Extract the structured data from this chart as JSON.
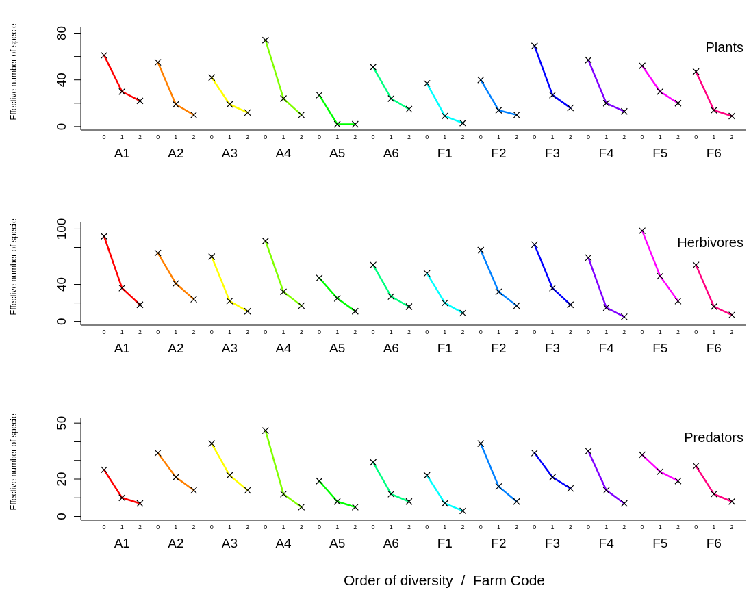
{
  "chart_data": [
    {
      "type": "line",
      "title": "Plants",
      "annotations": [
        "A1",
        "A2",
        "A3",
        "A4",
        "A5",
        "A6",
        "F1",
        "F2",
        "F3",
        "F4",
        "F5",
        "F6"
      ],
      "ylabel": "Effective number of specie",
      "categories": [
        "0",
        "1",
        "2",
        "0",
        "1",
        "2",
        "0",
        "1",
        "2",
        "0",
        "1",
        "2",
        "0",
        "1",
        "2",
        "0",
        "1",
        "2",
        "0",
        "1",
        "2",
        "0",
        "1",
        "2",
        "0",
        "1",
        "2",
        "0",
        "1",
        "2",
        "0",
        "1",
        "2",
        "0",
        "1",
        "2"
      ],
      "ylim": [
        -3,
        85
      ],
      "yticks": [
        0,
        {
          "value": 20,
          "label": null
        },
        40,
        {
          "value": 60,
          "label": null
        },
        80
      ],
      "grid": false,
      "legend": false,
      "marker": "cross",
      "line_style": "solid",
      "series": [
        {
          "color": "#ff0000",
          "values": [
            61,
            30,
            22,
            null,
            null,
            null,
            null,
            null,
            null,
            null,
            null,
            null,
            null,
            null,
            null,
            null,
            null,
            null,
            null,
            null,
            null,
            null,
            null,
            null,
            null,
            null,
            null,
            null,
            null,
            null,
            null,
            null,
            null,
            null,
            null,
            null
          ]
        },
        {
          "color": "#ff8000",
          "values": [
            null,
            null,
            null,
            55,
            19,
            10,
            null,
            null,
            null,
            null,
            null,
            null,
            null,
            null,
            null,
            null,
            null,
            null,
            null,
            null,
            null,
            null,
            null,
            null,
            null,
            null,
            null,
            null,
            null,
            null,
            null,
            null,
            null,
            null,
            null,
            null
          ]
        },
        {
          "color": "#ffff00",
          "values": [
            null,
            null,
            null,
            null,
            null,
            null,
            42,
            19,
            12,
            null,
            null,
            null,
            null,
            null,
            null,
            null,
            null,
            null,
            null,
            null,
            null,
            null,
            null,
            null,
            null,
            null,
            null,
            null,
            null,
            null,
            null,
            null,
            null,
            null,
            null,
            null
          ]
        },
        {
          "color": "#80ff00",
          "values": [
            null,
            null,
            null,
            null,
            null,
            null,
            null,
            null,
            null,
            74,
            24,
            10,
            null,
            null,
            null,
            null,
            null,
            null,
            null,
            null,
            null,
            null,
            null,
            null,
            null,
            null,
            null,
            null,
            null,
            null,
            null,
            null,
            null,
            null,
            null,
            null
          ]
        },
        {
          "color": "#00ff00",
          "values": [
            null,
            null,
            null,
            null,
            null,
            null,
            null,
            null,
            null,
            null,
            null,
            null,
            27,
            2,
            2,
            null,
            null,
            null,
            null,
            null,
            null,
            null,
            null,
            null,
            null,
            null,
            null,
            null,
            null,
            null,
            null,
            null,
            null,
            null,
            null,
            null
          ]
        },
        {
          "color": "#00ff80",
          "values": [
            null,
            null,
            null,
            null,
            null,
            null,
            null,
            null,
            null,
            null,
            null,
            null,
            null,
            null,
            null,
            51,
            24,
            15,
            null,
            null,
            null,
            null,
            null,
            null,
            null,
            null,
            null,
            null,
            null,
            null,
            null,
            null,
            null,
            null,
            null,
            null
          ]
        },
        {
          "color": "#00ffff",
          "values": [
            null,
            null,
            null,
            null,
            null,
            null,
            null,
            null,
            null,
            null,
            null,
            null,
            null,
            null,
            null,
            null,
            null,
            null,
            37,
            9,
            3,
            null,
            null,
            null,
            null,
            null,
            null,
            null,
            null,
            null,
            null,
            null,
            null,
            null,
            null,
            null
          ]
        },
        {
          "color": "#0080ff",
          "values": [
            null,
            null,
            null,
            null,
            null,
            null,
            null,
            null,
            null,
            null,
            null,
            null,
            null,
            null,
            null,
            null,
            null,
            null,
            null,
            null,
            null,
            40,
            14,
            10,
            null,
            null,
            null,
            null,
            null,
            null,
            null,
            null,
            null,
            null,
            null,
            null
          ]
        },
        {
          "color": "#0000ff",
          "values": [
            null,
            null,
            null,
            null,
            null,
            null,
            null,
            null,
            null,
            null,
            null,
            null,
            null,
            null,
            null,
            null,
            null,
            null,
            null,
            null,
            null,
            null,
            null,
            null,
            69,
            27,
            16,
            null,
            null,
            null,
            null,
            null,
            null,
            null,
            null,
            null
          ]
        },
        {
          "color": "#8000ff",
          "values": [
            null,
            null,
            null,
            null,
            null,
            null,
            null,
            null,
            null,
            null,
            null,
            null,
            null,
            null,
            null,
            null,
            null,
            null,
            null,
            null,
            null,
            null,
            null,
            null,
            null,
            null,
            null,
            57,
            20,
            13,
            null,
            null,
            null,
            null,
            null,
            null
          ]
        },
        {
          "color": "#ff00ff",
          "values": [
            null,
            null,
            null,
            null,
            null,
            null,
            null,
            null,
            null,
            null,
            null,
            null,
            null,
            null,
            null,
            null,
            null,
            null,
            null,
            null,
            null,
            null,
            null,
            null,
            null,
            null,
            null,
            null,
            null,
            null,
            52,
            30,
            20,
            null,
            null,
            null
          ]
        },
        {
          "color": "#ff0080",
          "values": [
            null,
            null,
            null,
            null,
            null,
            null,
            null,
            null,
            null,
            null,
            null,
            null,
            null,
            null,
            null,
            null,
            null,
            null,
            null,
            null,
            null,
            null,
            null,
            null,
            null,
            null,
            null,
            null,
            null,
            null,
            null,
            null,
            null,
            47,
            14,
            9
          ]
        }
      ]
    },
    {
      "type": "line",
      "title": "Herbivores",
      "annotations": [
        "A1",
        "A2",
        "A3",
        "A4",
        "A5",
        "A6",
        "F1",
        "F2",
        "F3",
        "F4",
        "F5",
        "F6"
      ],
      "ylabel": "Effective number of specie",
      "categories": [
        "0",
        "1",
        "2",
        "0",
        "1",
        "2",
        "0",
        "1",
        "2",
        "0",
        "1",
        "2",
        "0",
        "1",
        "2",
        "0",
        "1",
        "2",
        "0",
        "1",
        "2",
        "0",
        "1",
        "2",
        "0",
        "1",
        "2",
        "0",
        "1",
        "2",
        "0",
        "1",
        "2",
        "0",
        "1",
        "2"
      ],
      "ylim": [
        -4,
        107
      ],
      "yticks": [
        0,
        {
          "value": 20,
          "label": null
        },
        40,
        {
          "value": 60,
          "label": null
        },
        {
          "value": 80,
          "label": null
        },
        100
      ],
      "grid": false,
      "legend": false,
      "marker": "cross",
      "line_style": "solid",
      "series": [
        {
          "color": "#ff0000",
          "values": [
            92,
            36,
            18,
            null,
            null,
            null,
            null,
            null,
            null,
            null,
            null,
            null,
            null,
            null,
            null,
            null,
            null,
            null,
            null,
            null,
            null,
            null,
            null,
            null,
            null,
            null,
            null,
            null,
            null,
            null,
            null,
            null,
            null,
            null,
            null,
            null
          ]
        },
        {
          "color": "#ff8000",
          "values": [
            null,
            null,
            null,
            74,
            41,
            24,
            null,
            null,
            null,
            null,
            null,
            null,
            null,
            null,
            null,
            null,
            null,
            null,
            null,
            null,
            null,
            null,
            null,
            null,
            null,
            null,
            null,
            null,
            null,
            null,
            null,
            null,
            null,
            null,
            null,
            null
          ]
        },
        {
          "color": "#ffff00",
          "values": [
            null,
            null,
            null,
            null,
            null,
            null,
            70,
            22,
            11,
            null,
            null,
            null,
            null,
            null,
            null,
            null,
            null,
            null,
            null,
            null,
            null,
            null,
            null,
            null,
            null,
            null,
            null,
            null,
            null,
            null,
            null,
            null,
            null,
            null,
            null,
            null
          ]
        },
        {
          "color": "#80ff00",
          "values": [
            null,
            null,
            null,
            null,
            null,
            null,
            null,
            null,
            null,
            87,
            32,
            17,
            null,
            null,
            null,
            null,
            null,
            null,
            null,
            null,
            null,
            null,
            null,
            null,
            null,
            null,
            null,
            null,
            null,
            null,
            null,
            null,
            null,
            null,
            null,
            null
          ]
        },
        {
          "color": "#00ff00",
          "values": [
            null,
            null,
            null,
            null,
            null,
            null,
            null,
            null,
            null,
            null,
            null,
            null,
            47,
            25,
            11,
            null,
            null,
            null,
            null,
            null,
            null,
            null,
            null,
            null,
            null,
            null,
            null,
            null,
            null,
            null,
            null,
            null,
            null,
            null,
            null,
            null
          ]
        },
        {
          "color": "#00ff80",
          "values": [
            null,
            null,
            null,
            null,
            null,
            null,
            null,
            null,
            null,
            null,
            null,
            null,
            null,
            null,
            null,
            61,
            27,
            16,
            null,
            null,
            null,
            null,
            null,
            null,
            null,
            null,
            null,
            null,
            null,
            null,
            null,
            null,
            null,
            null,
            null,
            null
          ]
        },
        {
          "color": "#00ffff",
          "values": [
            null,
            null,
            null,
            null,
            null,
            null,
            null,
            null,
            null,
            null,
            null,
            null,
            null,
            null,
            null,
            null,
            null,
            null,
            52,
            20,
            9,
            null,
            null,
            null,
            null,
            null,
            null,
            null,
            null,
            null,
            null,
            null,
            null,
            null,
            null,
            null
          ]
        },
        {
          "color": "#0080ff",
          "values": [
            null,
            null,
            null,
            null,
            null,
            null,
            null,
            null,
            null,
            null,
            null,
            null,
            null,
            null,
            null,
            null,
            null,
            null,
            null,
            null,
            null,
            77,
            32,
            17,
            null,
            null,
            null,
            null,
            null,
            null,
            null,
            null,
            null,
            null,
            null,
            null
          ]
        },
        {
          "color": "#0000ff",
          "values": [
            null,
            null,
            null,
            null,
            null,
            null,
            null,
            null,
            null,
            null,
            null,
            null,
            null,
            null,
            null,
            null,
            null,
            null,
            null,
            null,
            null,
            null,
            null,
            null,
            83,
            36,
            18,
            null,
            null,
            null,
            null,
            null,
            null,
            null,
            null,
            null
          ]
        },
        {
          "color": "#8000ff",
          "values": [
            null,
            null,
            null,
            null,
            null,
            null,
            null,
            null,
            null,
            null,
            null,
            null,
            null,
            null,
            null,
            null,
            null,
            null,
            null,
            null,
            null,
            null,
            null,
            null,
            null,
            null,
            null,
            69,
            15,
            5,
            null,
            null,
            null,
            null,
            null,
            null
          ]
        },
        {
          "color": "#ff00ff",
          "values": [
            null,
            null,
            null,
            null,
            null,
            null,
            null,
            null,
            null,
            null,
            null,
            null,
            null,
            null,
            null,
            null,
            null,
            null,
            null,
            null,
            null,
            null,
            null,
            null,
            null,
            null,
            null,
            null,
            null,
            null,
            98,
            49,
            22,
            null,
            null,
            null
          ]
        },
        {
          "color": "#ff0080",
          "values": [
            null,
            null,
            null,
            null,
            null,
            null,
            null,
            null,
            null,
            null,
            null,
            null,
            null,
            null,
            null,
            null,
            null,
            null,
            null,
            null,
            null,
            null,
            null,
            null,
            null,
            null,
            null,
            null,
            null,
            null,
            null,
            null,
            null,
            61,
            16,
            7
          ]
        }
      ]
    },
    {
      "type": "line",
      "title": "Predators",
      "annotations": [
        "A1",
        "A2",
        "A3",
        "A4",
        "A5",
        "A6",
        "F1",
        "F2",
        "F3",
        "F4",
        "F5",
        "F6"
      ],
      "ylabel": "Effective number of specie",
      "xlabel": "Order of diversity  /  Farm Code",
      "categories": [
        "0",
        "1",
        "2",
        "0",
        "1",
        "2",
        "0",
        "1",
        "2",
        "0",
        "1",
        "2",
        "0",
        "1",
        "2",
        "0",
        "1",
        "2",
        "0",
        "1",
        "2",
        "0",
        "1",
        "2",
        "0",
        "1",
        "2",
        "0",
        "1",
        "2",
        "0",
        "1",
        "2",
        "0",
        "1",
        "2"
      ],
      "ylim": [
        -2,
        53
      ],
      "yticks": [
        0,
        {
          "value": 10,
          "label": null
        },
        20,
        {
          "value": 30,
          "label": null
        },
        {
          "value": 40,
          "label": null
        },
        50
      ],
      "grid": false,
      "legend": false,
      "marker": "cross",
      "line_style": "solid",
      "series": [
        {
          "color": "#ff0000",
          "values": [
            25,
            10,
            7,
            null,
            null,
            null,
            null,
            null,
            null,
            null,
            null,
            null,
            null,
            null,
            null,
            null,
            null,
            null,
            null,
            null,
            null,
            null,
            null,
            null,
            null,
            null,
            null,
            null,
            null,
            null,
            null,
            null,
            null,
            null,
            null,
            null
          ]
        },
        {
          "color": "#ff8000",
          "values": [
            null,
            null,
            null,
            34,
            21,
            14,
            null,
            null,
            null,
            null,
            null,
            null,
            null,
            null,
            null,
            null,
            null,
            null,
            null,
            null,
            null,
            null,
            null,
            null,
            null,
            null,
            null,
            null,
            null,
            null,
            null,
            null,
            null,
            null,
            null,
            null
          ]
        },
        {
          "color": "#ffff00",
          "values": [
            null,
            null,
            null,
            null,
            null,
            null,
            39,
            22,
            14,
            null,
            null,
            null,
            null,
            null,
            null,
            null,
            null,
            null,
            null,
            null,
            null,
            null,
            null,
            null,
            null,
            null,
            null,
            null,
            null,
            null,
            null,
            null,
            null,
            null,
            null,
            null
          ]
        },
        {
          "color": "#80ff00",
          "values": [
            null,
            null,
            null,
            null,
            null,
            null,
            null,
            null,
            null,
            46,
            12,
            5,
            null,
            null,
            null,
            null,
            null,
            null,
            null,
            null,
            null,
            null,
            null,
            null,
            null,
            null,
            null,
            null,
            null,
            null,
            null,
            null,
            null,
            null,
            null,
            null
          ]
        },
        {
          "color": "#00ff00",
          "values": [
            null,
            null,
            null,
            null,
            null,
            null,
            null,
            null,
            null,
            null,
            null,
            null,
            19,
            8,
            5,
            null,
            null,
            null,
            null,
            null,
            null,
            null,
            null,
            null,
            null,
            null,
            null,
            null,
            null,
            null,
            null,
            null,
            null,
            null,
            null,
            null
          ]
        },
        {
          "color": "#00ff80",
          "values": [
            null,
            null,
            null,
            null,
            null,
            null,
            null,
            null,
            null,
            null,
            null,
            null,
            null,
            null,
            null,
            29,
            12,
            8,
            null,
            null,
            null,
            null,
            null,
            null,
            null,
            null,
            null,
            null,
            null,
            null,
            null,
            null,
            null,
            null,
            null,
            null
          ]
        },
        {
          "color": "#00ffff",
          "values": [
            null,
            null,
            null,
            null,
            null,
            null,
            null,
            null,
            null,
            null,
            null,
            null,
            null,
            null,
            null,
            null,
            null,
            null,
            22,
            7,
            3,
            null,
            null,
            null,
            null,
            null,
            null,
            null,
            null,
            null,
            null,
            null,
            null,
            null,
            null,
            null
          ]
        },
        {
          "color": "#0080ff",
          "values": [
            null,
            null,
            null,
            null,
            null,
            null,
            null,
            null,
            null,
            null,
            null,
            null,
            null,
            null,
            null,
            null,
            null,
            null,
            null,
            null,
            null,
            39,
            16,
            8,
            null,
            null,
            null,
            null,
            null,
            null,
            null,
            null,
            null,
            null,
            null,
            null
          ]
        },
        {
          "color": "#0000ff",
          "values": [
            null,
            null,
            null,
            null,
            null,
            null,
            null,
            null,
            null,
            null,
            null,
            null,
            null,
            null,
            null,
            null,
            null,
            null,
            null,
            null,
            null,
            null,
            null,
            null,
            34,
            21,
            15,
            null,
            null,
            null,
            null,
            null,
            null,
            null,
            null,
            null
          ]
        },
        {
          "color": "#8000ff",
          "values": [
            null,
            null,
            null,
            null,
            null,
            null,
            null,
            null,
            null,
            null,
            null,
            null,
            null,
            null,
            null,
            null,
            null,
            null,
            null,
            null,
            null,
            null,
            null,
            null,
            null,
            null,
            null,
            35,
            14,
            7,
            null,
            null,
            null,
            null,
            null,
            null
          ]
        },
        {
          "color": "#ff00ff",
          "values": [
            null,
            null,
            null,
            null,
            null,
            null,
            null,
            null,
            null,
            null,
            null,
            null,
            null,
            null,
            null,
            null,
            null,
            null,
            null,
            null,
            null,
            null,
            null,
            null,
            null,
            null,
            null,
            null,
            null,
            null,
            33,
            24,
            19,
            null,
            null,
            null
          ]
        },
        {
          "color": "#ff0080",
          "values": [
            null,
            null,
            null,
            null,
            null,
            null,
            null,
            null,
            null,
            null,
            null,
            null,
            null,
            null,
            null,
            null,
            null,
            null,
            null,
            null,
            null,
            null,
            null,
            null,
            null,
            null,
            null,
            null,
            null,
            null,
            null,
            null,
            null,
            27,
            12,
            8
          ]
        }
      ]
    }
  ]
}
